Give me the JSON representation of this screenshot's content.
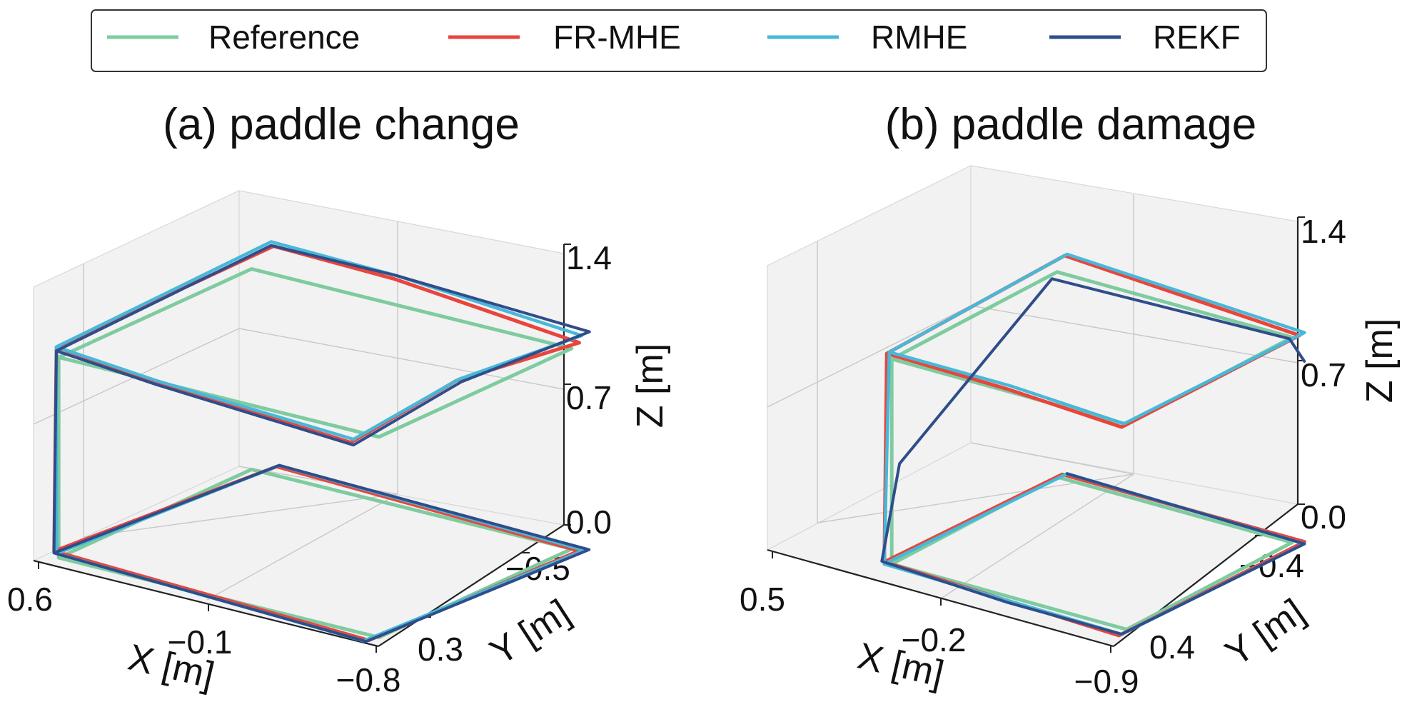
{
  "legend": {
    "entries": [
      {
        "label": "Reference",
        "color": "#7fcba0"
      },
      {
        "label": "FR-MHE",
        "color": "#e8453c"
      },
      {
        "label": "RMHE",
        "color": "#48b8d8"
      },
      {
        "label": "REKF",
        "color": "#2f4d8a"
      }
    ]
  },
  "chart_data": [
    {
      "type": "line3d",
      "title": "(a) paddle change",
      "xlabel": "X [m]",
      "ylabel": "Y [m]",
      "zlabel": "Z [m]",
      "xlim": [
        0.6,
        -0.8
      ],
      "ylim": [
        -0.5,
        0.3
      ],
      "zlim": [
        0.0,
        1.4
      ],
      "x_ticks": [
        "0.6",
        "−0.1",
        "−0.8"
      ],
      "y_ticks": [
        "−0.5",
        "0.3"
      ],
      "z_ticks": [
        "0.0",
        "0.7",
        "1.4"
      ],
      "series": [
        {
          "name": "Reference",
          "points": [
            [
              0.55,
              0.25,
              1.0
            ],
            [
              -0.75,
              0.25,
              1.0
            ],
            [
              -0.75,
              -0.5,
              1.0
            ],
            [
              0.55,
              -0.5,
              1.0
            ],
            [
              0.55,
              0.25,
              1.0
            ],
            [
              0.55,
              0.25,
              0.0
            ],
            [
              -0.75,
              0.25,
              0.0
            ],
            [
              -0.75,
              -0.5,
              0.0
            ],
            [
              0.55,
              -0.5,
              0.0
            ],
            [
              0.55,
              0.25,
              0.0
            ]
          ]
        },
        {
          "name": "FR-MHE",
          "points": [
            [
              0.58,
              0.23,
              1.03
            ],
            [
              0.1,
              0.3,
              1.04
            ],
            [
              -0.72,
              0.33,
              1.01
            ],
            [
              -0.7,
              -0.1,
              1.06
            ],
            [
              -0.76,
              -0.52,
              1.02
            ],
            [
              0.0,
              -0.53,
              1.1
            ],
            [
              0.45,
              -0.49,
              1.15
            ],
            [
              0.58,
              0.23,
              1.03
            ],
            [
              0.6,
              0.22,
              0.0
            ],
            [
              -0.74,
              0.28,
              0.0
            ],
            [
              -0.78,
              -0.5,
              0.0
            ],
            [
              0.5,
              -0.55,
              0.0
            ],
            [
              0.6,
              0.22,
              0.0
            ]
          ]
        },
        {
          "name": "RMHE",
          "points": [
            [
              0.57,
              0.24,
              1.04
            ],
            [
              0.1,
              0.3,
              1.05
            ],
            [
              -0.72,
              0.32,
              1.02
            ],
            [
              -0.71,
              -0.1,
              1.07
            ],
            [
              -0.76,
              -0.53,
              1.05
            ],
            [
              0.0,
              -0.53,
              1.12
            ],
            [
              0.47,
              -0.5,
              1.16
            ],
            [
              0.57,
              0.24,
              1.04
            ],
            [
              0.58,
              0.23,
              0.0
            ],
            [
              -0.73,
              0.29,
              0.0
            ],
            [
              -0.79,
              -0.51,
              0.0
            ],
            [
              0.5,
              -0.56,
              0.0
            ],
            [
              0.58,
              0.23,
              0.0
            ]
          ]
        },
        {
          "name": "REKF",
          "points": [
            [
              0.57,
              0.24,
              1.02
            ],
            [
              0.1,
              0.3,
              1.03
            ],
            [
              -0.73,
              0.33,
              1.0
            ],
            [
              -0.72,
              -0.1,
              1.06
            ],
            [
              -0.77,
              -0.55,
              1.06
            ],
            [
              0.0,
              -0.54,
              1.11
            ],
            [
              0.46,
              -0.49,
              1.15
            ],
            [
              0.57,
              0.24,
              1.02
            ],
            [
              0.59,
              0.23,
              0.0
            ],
            [
              -0.74,
              0.29,
              0.0
            ],
            [
              -0.8,
              -0.52,
              0.0
            ],
            [
              0.5,
              -0.56,
              0.0
            ],
            [
              0.59,
              0.23,
              0.0
            ]
          ]
        }
      ]
    },
    {
      "type": "line3d",
      "title": "(b) paddle damage",
      "xlabel": "X [m]",
      "ylabel": "Y [m]",
      "zlabel": "Z [m]",
      "xlim": [
        0.5,
        -0.9
      ],
      "ylim": [
        -0.4,
        0.4
      ],
      "zlim": [
        0.0,
        1.4
      ],
      "x_ticks": [
        "0.5",
        "−0.2",
        "−0.9"
      ],
      "y_ticks": [
        "−0.4",
        "0.4"
      ],
      "z_ticks": [
        "0.0",
        "0.7",
        "1.4"
      ],
      "series": [
        {
          "name": "Reference",
          "points": [
            [
              0.1,
              0.3,
              1.0
            ],
            [
              -0.85,
              0.3,
              1.0
            ],
            [
              -0.85,
              -0.35,
              1.0
            ],
            [
              0.1,
              -0.35,
              1.0
            ],
            [
              0.1,
              0.3,
              1.0
            ],
            [
              0.1,
              0.3,
              0.0
            ],
            [
              -0.85,
              0.3,
              0.0
            ],
            [
              -0.85,
              -0.35,
              0.0
            ],
            [
              0.1,
              -0.35,
              0.0
            ],
            [
              0.1,
              0.3,
              0.0
            ]
          ]
        },
        {
          "name": "FR-MHE",
          "points": [
            [
              0.12,
              0.3,
              1.02
            ],
            [
              -0.4,
              0.33,
              1.04
            ],
            [
              -0.85,
              0.32,
              1.0
            ],
            [
              -0.87,
              -0.36,
              1.01
            ],
            [
              0.1,
              -0.38,
              1.06
            ],
            [
              0.12,
              0.3,
              1.02
            ],
            [
              0.13,
              0.3,
              0.0
            ],
            [
              -0.86,
              0.34,
              0.0
            ],
            [
              -0.88,
              -0.37,
              0.0
            ],
            [
              0.1,
              -0.37,
              0.0
            ],
            [
              0.13,
              0.3,
              0.0
            ]
          ]
        },
        {
          "name": "RMHE",
          "points": [
            [
              0.11,
              0.3,
              1.03
            ],
            [
              -0.4,
              0.32,
              1.05
            ],
            [
              -0.85,
              0.31,
              1.01
            ],
            [
              -0.88,
              -0.37,
              1.02
            ],
            [
              0.09,
              -0.38,
              1.07
            ],
            [
              0.11,
              0.3,
              1.03
            ],
            [
              0.12,
              0.31,
              0.0
            ],
            [
              -0.86,
              0.33,
              0.0
            ],
            [
              -0.89,
              -0.36,
              0.0
            ],
            [
              0.09,
              -0.38,
              0.0
            ],
            [
              0.12,
              0.31,
              0.0
            ]
          ]
        },
        {
          "name": "REKF",
          "points": [
            [
              -0.9,
              -0.35,
              0.9
            ],
            [
              -0.85,
              -0.34,
              1.0
            ],
            [
              0.1,
              -0.33,
              0.98
            ],
            [
              0.12,
              0.25,
              0.45
            ],
            [
              0.14,
              0.3,
              0.0
            ],
            [
              -0.4,
              0.33,
              0.0
            ],
            [
              -0.86,
              0.33,
              0.0
            ],
            [
              -0.89,
              -0.36,
              0.0
            ],
            [
              0.09,
              -0.38,
              0.0
            ]
          ]
        }
      ]
    }
  ]
}
